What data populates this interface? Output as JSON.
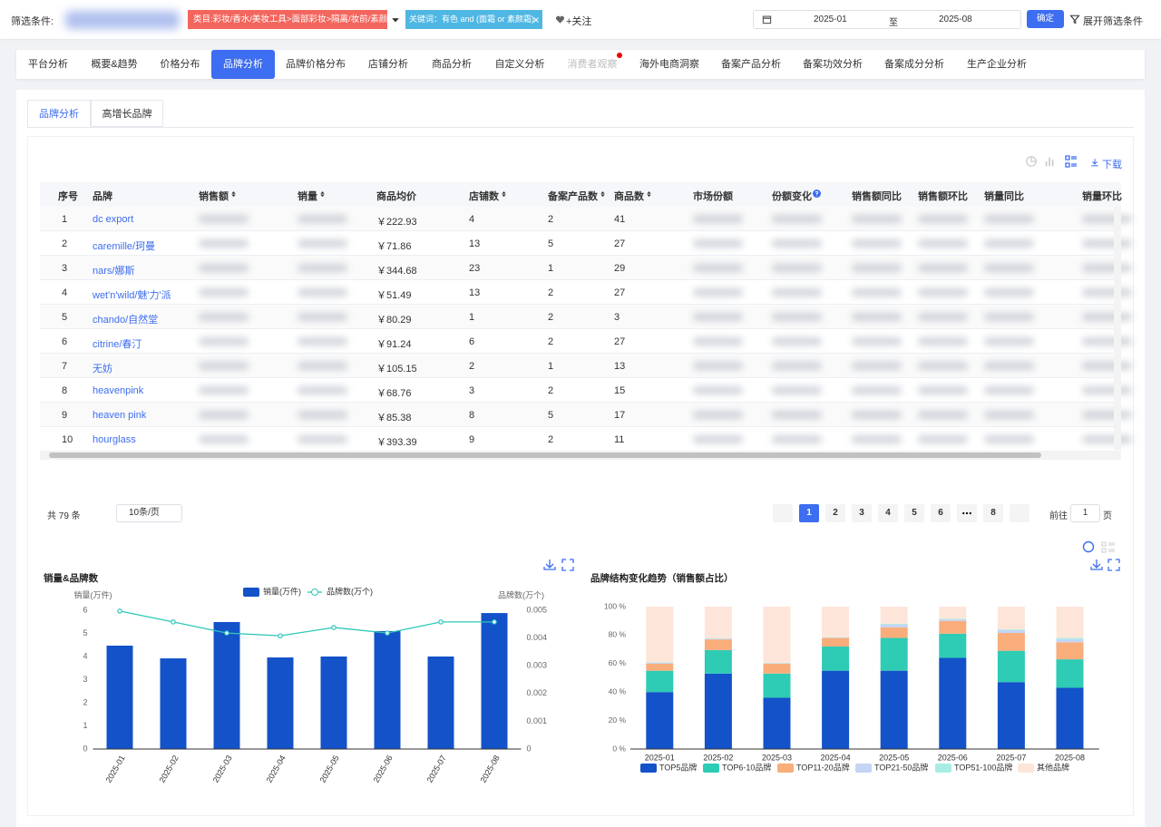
{
  "filter": {
    "label": "筛选条件:",
    "category_chip": "类目:彩妆/香水/美妆工具>面部彩妆>隔离/妆前/素颜霜",
    "keyword_chip": "关键词：有色 and (面霜 or 素颜霜)",
    "follow": "+关注",
    "date_start": "2025-01",
    "date_sep": "至",
    "date_end": "2025-08",
    "confirm": "确定",
    "expand": "展开筛选条件"
  },
  "tabs": [
    "平台分析",
    "概要&趋势",
    "价格分布",
    "品牌分析",
    "品牌价格分布",
    "店铺分析",
    "商品分析",
    "自定义分析",
    "消费者观察",
    "海外电商洞察",
    "备案产品分析",
    "备案功效分析",
    "备案成分分析",
    "生产企业分析"
  ],
  "active_tab": 3,
  "disabled_tab": 8,
  "subtabs": [
    "品牌分析",
    "高增长品牌"
  ],
  "download": "下载",
  "table": {
    "columns": [
      "序号",
      "品牌",
      "销售额",
      "销量",
      "商品均价",
      "店铺数",
      "备案产品数",
      "商品数",
      "市场份额",
      "份额变化",
      "销售额同比",
      "销售额环比",
      "销量同比",
      "销量环比"
    ],
    "rows": [
      [
        1,
        "dc export",
        "￥222.93",
        4,
        2,
        41
      ],
      [
        2,
        "caremille/珂曼",
        "￥71.86",
        13,
        5,
        27
      ],
      [
        3,
        "nars/娜斯",
        "￥344.68",
        23,
        1,
        29
      ],
      [
        4,
        "wet'n'wild/魅'力'派",
        "￥51.49",
        13,
        2,
        27
      ],
      [
        5,
        "chando/自然堂",
        "￥80.29",
        1,
        2,
        3
      ],
      [
        6,
        "citrine/春汀",
        "￥91.24",
        6,
        2,
        27
      ],
      [
        7,
        "无妨",
        "￥105.15",
        2,
        1,
        13
      ],
      [
        8,
        "heavenpink",
        "￥68.76",
        3,
        2,
        15
      ],
      [
        9,
        "heaven pink",
        "￥85.38",
        8,
        5,
        17
      ],
      [
        10,
        "hourglass",
        "￥393.39",
        9,
        2,
        11
      ]
    ]
  },
  "pagination": {
    "total": "共 79 条",
    "page_size": "10条/页",
    "pages": [
      1,
      2,
      3,
      4,
      5,
      6,
      8
    ],
    "current": 1,
    "goto": "前往",
    "goto_value": 1,
    "page_unit": "页"
  },
  "chart_data": [
    {
      "type": "combo",
      "title": "销量&品牌数",
      "y_label": "销量(万件)",
      "y2_label": "品牌数(万个)",
      "categories": [
        "2025-01",
        "2025-02",
        "2025-03",
        "2025-04",
        "2025-05",
        "2025-06",
        "2025-07",
        "2025-08"
      ],
      "series": [
        {
          "name": "销量(万件)",
          "type": "bar",
          "color": "#1352c9",
          "values": [
            4.47,
            3.92,
            5.49,
            3.96,
            4.0,
            5.1,
            4.0,
            5.88
          ]
        },
        {
          "name": "品牌数(万个)",
          "type": "line",
          "axis": "y2",
          "color": "#2ec7b9",
          "values": [
            0.00497,
            0.00458,
            0.00418,
            0.00408,
            0.00438,
            0.00418,
            0.00458,
            0.00458
          ]
        }
      ],
      "ylim": [
        0,
        6
      ],
      "yticks": [
        0,
        1,
        2,
        3,
        4,
        5,
        6
      ],
      "y2lim": [
        0,
        0.005
      ],
      "y2ticks": [
        0,
        0.001,
        0.002,
        0.003,
        0.004,
        0.005
      ],
      "grid": false,
      "legend": "top"
    },
    {
      "type": "bar",
      "stacked": true,
      "title": "品牌结构变化趋势（销售额占比）",
      "categories": [
        "2025-01",
        "2025-02",
        "2025-03",
        "2025-04",
        "2025-05",
        "2025-06",
        "2025-07",
        "2025-08"
      ],
      "series": [
        {
          "name": "TOP5品牌",
          "color": "#1352c9",
          "values": [
            40,
            53,
            36,
            55,
            55,
            64,
            47,
            43
          ]
        },
        {
          "name": "TOP6-10品牌",
          "color": "#2ecbb5",
          "values": [
            15,
            16.5,
            17,
            17,
            23,
            17,
            22,
            20
          ]
        },
        {
          "name": "TOP11-20品牌",
          "color": "#f9ad7b",
          "values": [
            5,
            7.5,
            7,
            6,
            7.5,
            9,
            12.5,
            12
          ]
        },
        {
          "name": "TOP21-50品牌",
          "color": "#c3d4f5",
          "values": [
            0.5,
            0.5,
            0.3,
            0.3,
            2,
            1,
            2,
            2
          ]
        },
        {
          "name": "TOP51-100品牌",
          "color": "#a8ede3",
          "values": [
            0.3,
            0.3,
            0.2,
            0.2,
            0.5,
            0.5,
            0.5,
            1
          ]
        },
        {
          "name": "其他品牌",
          "color": "#fde6d9",
          "values": [
            39.2,
            22.2,
            39.5,
            21.5,
            12,
            8.5,
            16,
            22
          ]
        }
      ],
      "ylim": [
        0,
        100
      ],
      "yticks": [
        {
          "value": 0,
          "label": "0 %"
        },
        {
          "value": 20,
          "label": "20 %"
        },
        {
          "value": 40,
          "label": "40 %"
        },
        {
          "value": 60,
          "label": "60 %"
        },
        {
          "value": 80,
          "label": "80 %"
        },
        {
          "value": 100,
          "label": "100 %"
        }
      ],
      "grid": false,
      "legend": "bottom"
    }
  ]
}
